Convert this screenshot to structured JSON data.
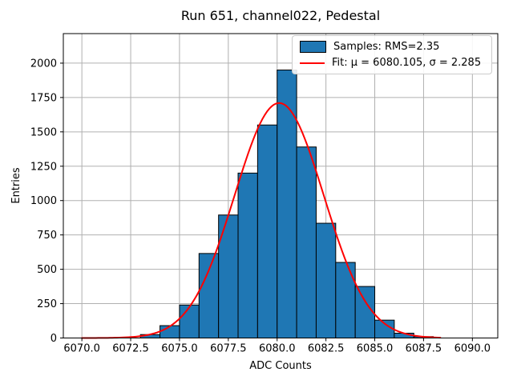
{
  "legend": {
    "items": [
      {
        "label": "Samples: RMS=2.35",
        "marker": "patch",
        "color": "#1f77b4"
      },
      {
        "label": "Fit: μ = 6080.105, σ = 2.285",
        "marker": "line",
        "color": "#ff0000"
      }
    ],
    "position": "upper right"
  },
  "chart_data": {
    "type": "bar",
    "title": "Run 651, channel022, Pedestal",
    "xlabel": "ADC Counts",
    "ylabel": "Entries",
    "bin_edges": [
      6073,
      6074,
      6075,
      6076,
      6077,
      6078,
      6079,
      6080,
      6081,
      6082,
      6083,
      6084,
      6085,
      6086,
      6087,
      6088
    ],
    "values": [
      25,
      90,
      240,
      615,
      895,
      1200,
      1550,
      1950,
      1390,
      835,
      550,
      375,
      130,
      35,
      10
    ],
    "samples_rms": 2.35,
    "bar_color": "#1f77b4",
    "bar_edge_color": "#000000",
    "grid": true,
    "grid_color": "#b0b0b0",
    "xlim": [
      6069.05,
      6091.3
    ],
    "ylim": [
      0,
      2215
    ],
    "x_ticks": [
      6070,
      6072.5,
      6075,
      6077.5,
      6080,
      6082.5,
      6085,
      6087.5,
      6090
    ],
    "x_tick_labels": [
      "6070.0",
      "6072.5",
      "6075.0",
      "6077.5",
      "6080.0",
      "6082.5",
      "6085.0",
      "6087.5",
      "6090.0"
    ],
    "y_ticks": [
      0,
      250,
      500,
      750,
      1000,
      1250,
      1500,
      1750,
      2000
    ],
    "y_tick_labels": [
      "0",
      "250",
      "500",
      "750",
      "1000",
      "1250",
      "1500",
      "1750",
      "2000"
    ],
    "fit": {
      "type": "gaussian",
      "mu": 6080.105,
      "sigma": 2.285,
      "amplitude": 1710,
      "x_start": 6070.0,
      "x_end": 6088.4,
      "color": "#ff0000",
      "linewidth": 2
    },
    "legend_position": "upper right"
  }
}
